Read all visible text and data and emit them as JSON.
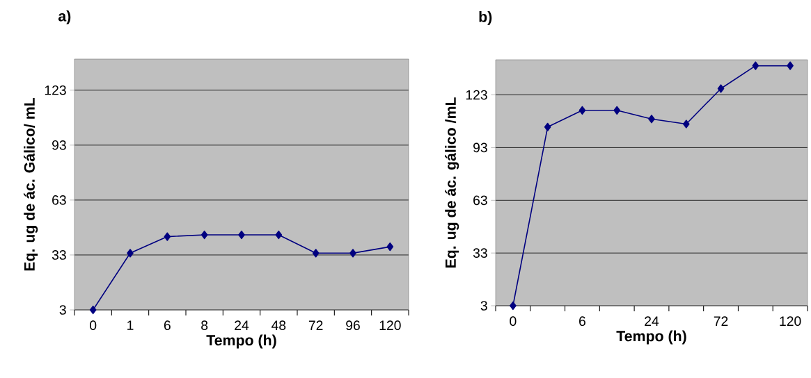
{
  "chart_data": [
    {
      "type": "line",
      "title": "a)",
      "xlabel": "Tempo (h)",
      "ylabel": "Eq. ug de ác. Gálico/ mL",
      "categories": [
        "0",
        "1",
        "6",
        "8",
        "24",
        "48",
        "72",
        "96",
        "120"
      ],
      "series": [
        {
          "color": "#000080",
          "values": [
            3,
            34,
            43,
            44,
            44,
            44,
            34,
            34,
            37.5
          ]
        }
      ],
      "ylim": [
        3,
        140
      ],
      "yticks": [
        3,
        33,
        63,
        93,
        123
      ],
      "grid": "y",
      "marker": "diamond",
      "line_style": "solid"
    },
    {
      "type": "line",
      "title": "b)",
      "xlabel": "Tempo (h)",
      "ylabel": "Eq. ug de ác. gálico /mL",
      "categories": [
        "0",
        null,
        "6",
        null,
        "24",
        null,
        "72",
        null,
        "120"
      ],
      "series": [
        {
          "color": "#000080",
          "values": [
            3,
            104.7,
            114.2,
            114.2,
            109.3,
            106.4,
            126.6,
            139.6,
            139.6
          ]
        }
      ],
      "ylim": [
        3,
        143
      ],
      "yticks": [
        3,
        33,
        63,
        93,
        123
      ],
      "grid": "y",
      "marker": "diamond",
      "line_style": "solid"
    }
  ]
}
